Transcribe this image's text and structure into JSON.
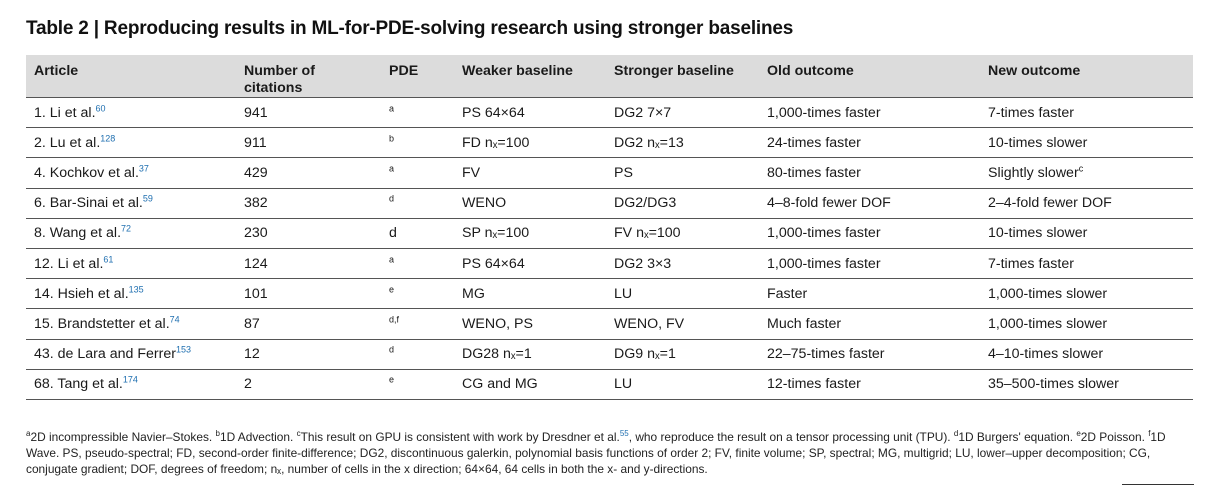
{
  "title": "Table 2 | Reproducing results in ML-for-PDE-solving research using stronger baselines",
  "headers": {
    "article": "Article",
    "citations_line1": "Number of",
    "citations_line2": "citations",
    "pde": "PDE",
    "weaker": "Weaker baseline",
    "stronger": "Stronger baseline",
    "old": "Old outcome",
    "new": "New outcome"
  },
  "rows": [
    {
      "article": "1. Li et al.",
      "ref": "60",
      "citations": "941",
      "pde": "a",
      "pde_sup": true,
      "weaker": "PS 64×64",
      "stronger": "DG2 7×7",
      "old": "1,000-times faster",
      "new": "7-times faster",
      "new_fn": ""
    },
    {
      "article": "2. Lu et al.",
      "ref": "128",
      "citations": "911",
      "pde": "b",
      "pde_sup": true,
      "weaker": "FD nₓ=100",
      "stronger": "DG2 nₓ=13",
      "old": "24-times faster",
      "new": "10-times slower",
      "new_fn": ""
    },
    {
      "article": "4. Kochkov et al.",
      "ref": "37",
      "citations": "429",
      "pde": "a",
      "pde_sup": true,
      "weaker": "FV",
      "stronger": "PS",
      "old": "80-times faster",
      "new": "Slightly slower",
      "new_fn": "c"
    },
    {
      "article": "6. Bar-Sinai et al.",
      "ref": "59",
      "citations": "382",
      "pde": "d",
      "pde_sup": true,
      "weaker": "WENO",
      "stronger": "DG2/DG3",
      "old": "4–8-fold fewer DOF",
      "new": "2–4-fold fewer DOF",
      "new_fn": ""
    },
    {
      "article": "8. Wang et al.",
      "ref": "72",
      "citations": "230",
      "pde": "d",
      "pde_sup": false,
      "weaker": "SP nₓ=100",
      "stronger": "FV nₓ=100",
      "old": "1,000-times faster",
      "new": "10-times slower",
      "new_fn": ""
    },
    {
      "article": "12. Li et al.",
      "ref": "61",
      "citations": "124",
      "pde": "a",
      "pde_sup": true,
      "weaker": "PS 64×64",
      "stronger": "DG2 3×3",
      "old": "1,000-times faster",
      "new": "7-times faster",
      "new_fn": ""
    },
    {
      "article": "14. Hsieh et al.",
      "ref": "135",
      "citations": "101",
      "pde": "e",
      "pde_sup": true,
      "weaker": "MG",
      "stronger": "LU",
      "old": "Faster",
      "new": "1,000-times slower",
      "new_fn": ""
    },
    {
      "article": "15. Brandstetter et al.",
      "ref": "74",
      "citations": "87",
      "pde": "d,f",
      "pde_sup": true,
      "weaker": "WENO, PS",
      "stronger": "WENO, FV",
      "old": "Much faster",
      "new": "1,000-times slower",
      "new_fn": ""
    },
    {
      "article": "43. de Lara and Ferrer",
      "ref": "153",
      "citations": "12",
      "pde": "d",
      "pde_sup": true,
      "weaker": "DG28 nₓ=1",
      "stronger": "DG9 nₓ=1",
      "old": "22–75-times faster",
      "new": "4–10-times slower",
      "new_fn": ""
    },
    {
      "article": "68. Tang et al.",
      "ref": "174",
      "citations": "2",
      "pde": "e",
      "pde_sup": true,
      "weaker": "CG and MG",
      "stronger": "LU",
      "old": "12-times faster",
      "new": "35–500-times slower",
      "new_fn": ""
    }
  ],
  "footnote": {
    "a_mark": "a",
    "a_text": "2D incompressible Navier–Stokes. ",
    "b_mark": "b",
    "b_text": "1D Advection. ",
    "c_mark": "c",
    "c_text1": "This result on GPU is consistent with work by Dresdner et al.",
    "c_ref": "55",
    "c_text2": ", who reproduce the result on a tensor processing unit (TPU). ",
    "d_mark": "d",
    "d_text": "1D Burgers' equation. ",
    "e_mark": "e",
    "e_text": "2D Poisson. ",
    "f_mark": "f",
    "f_text": "1D Wave. PS, pseudo-spectral; FD, second-order finite-difference; DG2, discontinuous galerkin, polynomial basis functions of order 2; FV, finite volume; SP, spectral; MG, multigrid; LU, lower–upper decomposition; CG, conjugate gradient; DOF, degrees of freedom; ",
    "nx_text": "nₓ, number of cells in the x direction; 64×64, 64 cells in both the x- and y-directions."
  }
}
